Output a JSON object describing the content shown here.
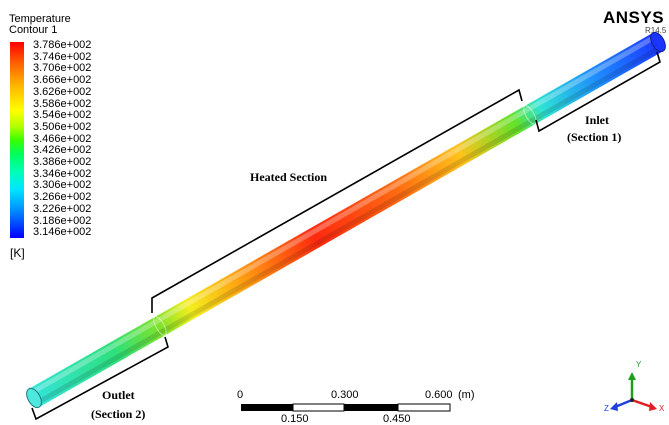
{
  "legend": {
    "title": "Temperature",
    "subtitle": "Contour 1",
    "values": [
      "3.786e+002",
      "3.746e+002",
      "3.706e+002",
      "3.666e+002",
      "3.626e+002",
      "3.586e+002",
      "3.546e+002",
      "3.506e+002",
      "3.466e+002",
      "3.426e+002",
      "3.386e+002",
      "3.346e+002",
      "3.306e+002",
      "3.266e+002",
      "3.226e+002",
      "3.186e+002",
      "3.146e+002"
    ],
    "unit": "[K]"
  },
  "logo": {
    "name": "ANSYS",
    "version": "R14.5"
  },
  "annotations": {
    "heated": "Heated Section",
    "inlet": "Inlet",
    "inlet_section": "(Section 1)",
    "outlet": "Outlet",
    "outlet_section": "(Section 2)"
  },
  "scale_bar": {
    "top_labels": [
      "0",
      "0.300",
      "0.600"
    ],
    "bottom_labels": [
      "0.150",
      "0.450"
    ],
    "unit": "(m)"
  },
  "triad": {
    "x": "X",
    "y": "Y",
    "z": "Z"
  },
  "colors": {
    "hot": "#ff2a00",
    "warm": "#ffd000",
    "mid": "#6adf2a",
    "cool": "#30e0e0",
    "cold": "#1b37ff"
  }
}
